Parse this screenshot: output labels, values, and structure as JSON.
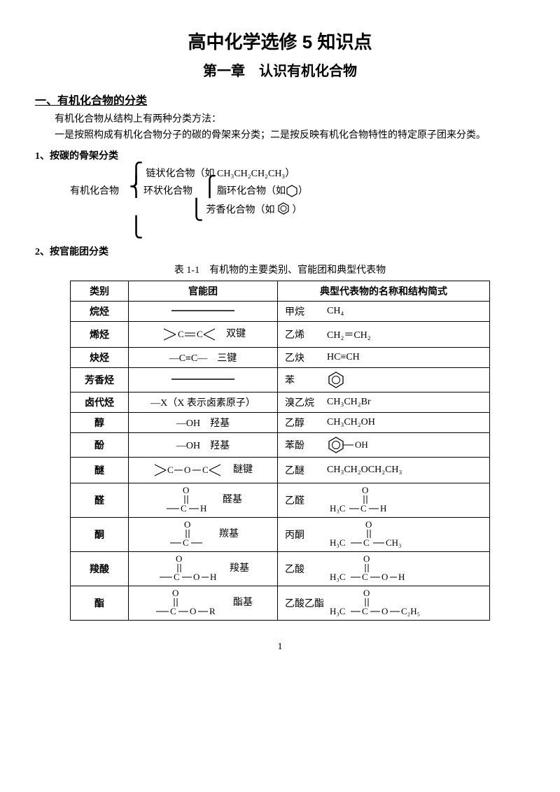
{
  "title": "高中化学选修 5 知识点",
  "subtitle": "第一章　认识有机化合物",
  "section1_heading": "一、有机化合物的分类",
  "intro_p1": "有机化合物从结构上有两种分类方法：",
  "intro_p2": "一是按照构成有机化合物分子的碳的骨架来分类；二是按反映有机化合物特性的特定原子团来分类。",
  "sub1": "1、按碳的骨架分类",
  "tree": {
    "root": "有机化合物",
    "chain": "链状化合物（如 CH₃CH₂CH₂CH₃）",
    "ring_label": "环状化合物",
    "alicyclic": "脂环化合物（如",
    "aromatic": "芳香化合物（如",
    "close": "）"
  },
  "sub2": "2、按官能团分类",
  "table_caption": "表 1-1　有机物的主要类别、官能团和典型代表物",
  "headers": {
    "c1": "类别",
    "c2": "官能团",
    "c3": "典型代表物的名称和结构简式"
  },
  "rows": [
    {
      "cat": "烷烃",
      "fg_dash": true,
      "rep_name": "甲烷",
      "rep_formula": "CH₄"
    },
    {
      "cat": "烯烃",
      "fg_svg": "cc_double",
      "fg_label": "双键",
      "rep_name": "乙烯",
      "rep_formula": "CH₂＝CH₂"
    },
    {
      "cat": "炔烃",
      "fg_text": "—C≡C—",
      "fg_label": "三键",
      "rep_name": "乙炔",
      "rep_formula": "HC≡CH"
    },
    {
      "cat": "芳香烃",
      "fg_dash": true,
      "rep_name": "苯",
      "rep_svg": "benzene"
    },
    {
      "cat": "卤代烃",
      "fg_text": "—X（X 表示卤素原子）",
      "rep_name": "溴乙烷",
      "rep_formula": "CH₃CH₂Br"
    },
    {
      "cat": "醇",
      "fg_text": "—OH　羟基",
      "rep_name": "乙醇",
      "rep_formula": "CH₃CH₂OH"
    },
    {
      "cat": "酚",
      "fg_text": "—OH　羟基",
      "rep_name": "苯酚",
      "rep_svg": "phenol"
    },
    {
      "cat": "醚",
      "fg_svg": "ether",
      "fg_label": "醚键",
      "rep_name": "乙醚",
      "rep_formula": "CH₃CH₂OCH₂CH₃"
    },
    {
      "cat": "醛",
      "fg_svg": "cho",
      "fg_label": "醛基",
      "rep_name": "乙醛",
      "rep_svg": "acetaldehyde"
    },
    {
      "cat": "酮",
      "fg_svg": "co",
      "fg_label": "羰基",
      "rep_name": "丙酮",
      "rep_svg": "acetone"
    },
    {
      "cat": "羧酸",
      "fg_svg": "cooh",
      "fg_label": "羧基",
      "rep_name": "乙酸",
      "rep_svg": "acetic"
    },
    {
      "cat": "酯",
      "fg_svg": "coor",
      "fg_label": "酯基",
      "rep_name": "乙酸乙酯",
      "rep_svg": "ethylacetate"
    }
  ],
  "page_number": "1",
  "colors": {
    "text": "#000000",
    "bg": "#ffffff",
    "border": "#000000"
  },
  "fonts": {
    "body_size": 14,
    "title_size": 26,
    "sub_size": 20
  }
}
